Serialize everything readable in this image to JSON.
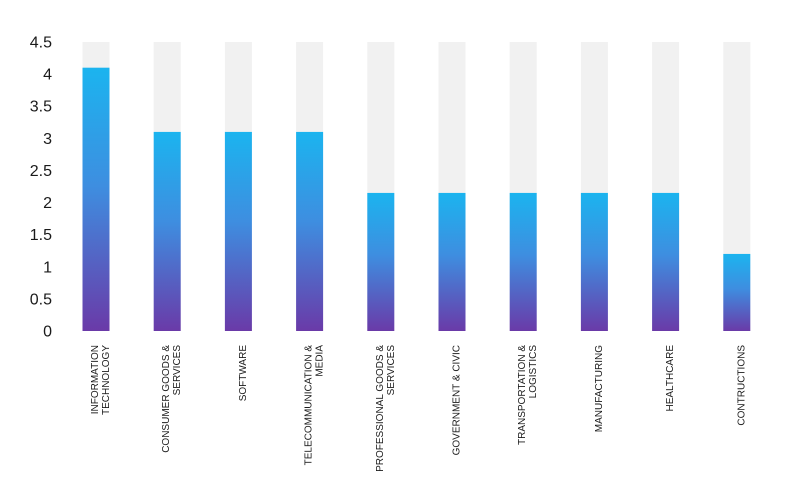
{
  "chart_data": {
    "type": "bar",
    "title": "",
    "xlabel": "",
    "ylabel": "",
    "ylim": [
      0,
      4.5
    ],
    "yticks": [
      "0",
      "0.5",
      "1",
      "1.5",
      "2",
      "2.5",
      "3",
      "3.5",
      "4",
      "4.5"
    ],
    "grid": false,
    "legend": "none",
    "categories": [
      [
        "INFORMATION",
        "TECHNOLOGY"
      ],
      [
        "CONSUMER GOODS &",
        "SERVICES"
      ],
      [
        "SOFTWARE"
      ],
      [
        "TELECOMMUNICATION &",
        "MEDIA"
      ],
      [
        "PROFESSIONAL GOODS &",
        "SERVICES"
      ],
      [
        "GOVERNMENT & CIVIC"
      ],
      [
        "TRANSPORTATION &",
        "LOGISTICS"
      ],
      [
        "MANUFACTURING"
      ],
      [
        "HEALTHCARE"
      ],
      [
        "CONTRUCTIONS"
      ]
    ],
    "values": [
      4.1,
      3.1,
      3.1,
      3.1,
      2.15,
      2.15,
      2.15,
      2.15,
      2.15,
      1.2
    ],
    "colors": {
      "bar_top": "#1bb4ef",
      "bar_bottom": "#6a3aa8",
      "track": "#f1f1f1"
    }
  }
}
